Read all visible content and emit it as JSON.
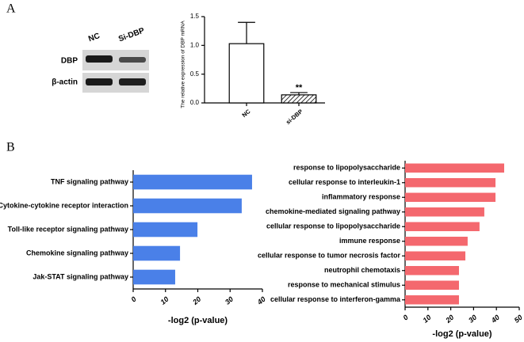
{
  "panel_labels": [
    "A",
    "B"
  ],
  "blot": {
    "columns": [
      "NC",
      "Si-DBP"
    ],
    "rows": [
      "DBP",
      "β-actin"
    ]
  },
  "chart_data": [
    {
      "type": "bar",
      "y_label": "The relative expression of DBP mRNA",
      "categories": [
        "NC",
        "si-DBP"
      ],
      "values": [
        1.03,
        0.14
      ],
      "errors": [
        0.37,
        0.04
      ],
      "fills": [
        "white",
        "hatch"
      ],
      "color": "#000000",
      "annotation": "**",
      "ylim": [
        0,
        1.5
      ],
      "yticks": [
        {
          "value": 0,
          "label": "0.0"
        },
        0.5,
        {
          "value": 1,
          "label": "1.0"
        },
        1.5
      ],
      "grid": false
    },
    {
      "type": "hbar",
      "x_label": "-log2 (p-value)",
      "categories": [
        "TNF signaling pathway",
        "Cytokine-cytokine receptor interaction",
        "Toll-like receptor signaling pathway",
        "Chemokine signaling pathway",
        "Jak-STAT signaling pathway"
      ],
      "values": [
        36.8,
        33.6,
        19.9,
        14.5,
        13
      ],
      "color": "#4a80e8",
      "xlim": [
        0,
        40
      ],
      "xticks": [
        0,
        10,
        20,
        30,
        40
      ],
      "grid": false
    },
    {
      "type": "hbar",
      "x_label": "-log2 (p-value)",
      "categories": [
        "response to lipopolysaccharide",
        "cellular response to interleukin-1",
        "inflammatory response",
        "chemokine-mediated signaling pathway",
        "cellular response to lipopolysaccharide",
        "immune response",
        "cellular response to tumor necrosis factor",
        "neutrophil chemotaxis",
        "response to mechanical stimulus",
        "cellular response to interferon-gamma"
      ],
      "values": [
        43.4,
        39.6,
        39.6,
        34.7,
        32.6,
        27.4,
        26.4,
        23.6,
        23.6,
        23.6
      ],
      "color": "#f4686e",
      "xlim": [
        0,
        50
      ],
      "xticks": [
        0,
        10,
        20,
        30,
        40,
        50
      ],
      "grid": false
    }
  ]
}
